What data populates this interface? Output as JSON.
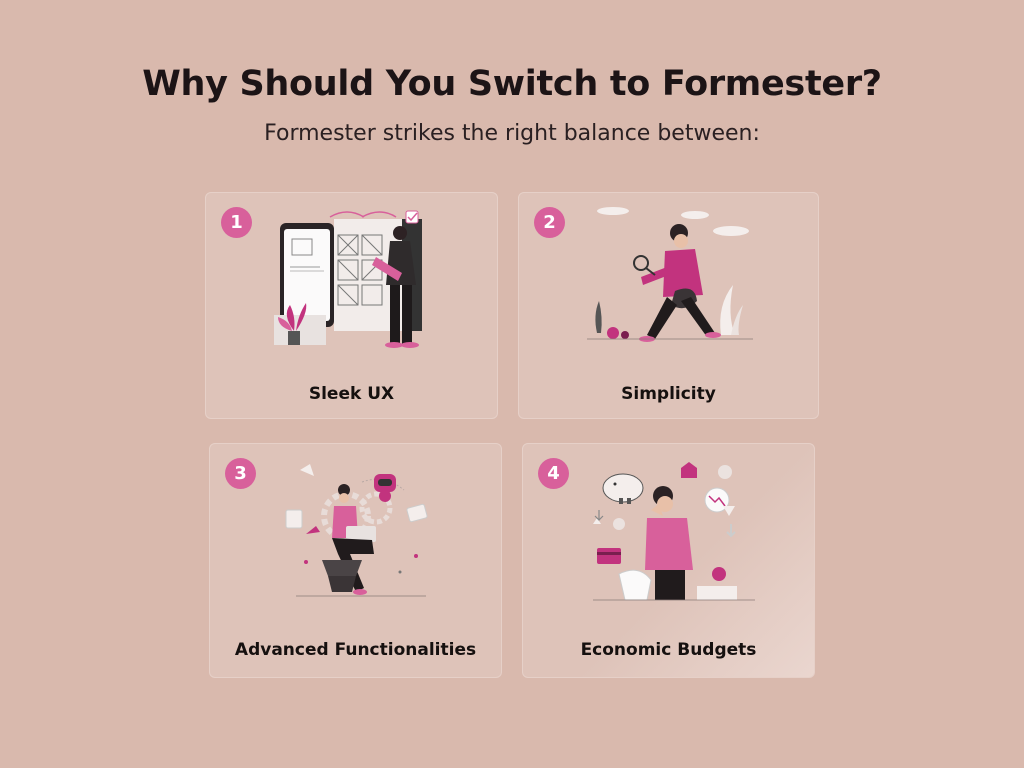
{
  "heading": "Why Should You Switch to Formester?",
  "subheading": "Formester strikes the right balance between:",
  "colors": {
    "background": "#d9b9ad",
    "card": "#dec3b9",
    "accent": "#d8609b"
  },
  "cards": [
    {
      "number": "1",
      "label": "Sleek UX",
      "icon": "phone-wireframe-illustration"
    },
    {
      "number": "2",
      "label": "Simplicity",
      "icon": "magnifying-glass-explorer-illustration"
    },
    {
      "number": "3",
      "label": "Advanced Functionalities",
      "icon": "robot-gears-laptop-illustration"
    },
    {
      "number": "4",
      "label": "Economic Budgets",
      "icon": "piggy-bank-receipt-illustration"
    }
  ]
}
